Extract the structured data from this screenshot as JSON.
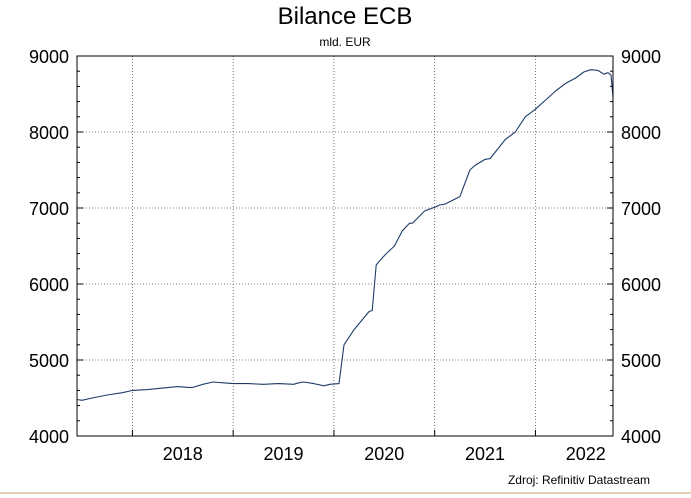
{
  "chart_data": {
    "type": "line",
    "title": "Bilance ECB",
    "subtitle": "mld. EUR",
    "source": "Zdroj: Refinitiv Datastream",
    "ylim": [
      4000,
      9000
    ],
    "y_ticks": [
      4000,
      5000,
      6000,
      7000,
      8000,
      9000
    ],
    "y_tick_labels": [
      "4000",
      "5000",
      "6000",
      "7000",
      "8000",
      "9000"
    ],
    "x_tick_labels": [
      "2018",
      "2019",
      "2020",
      "2021",
      "2022"
    ],
    "xlim": [
      2017.45,
      2022.77
    ],
    "x_year_bounds": [
      2018,
      2019,
      2020,
      2021,
      2022
    ],
    "grid": true,
    "dual_y_axis": true,
    "colors": {
      "line": "#1f3c68",
      "grid": "#555555",
      "footer_rule": "#c8a86a"
    },
    "series": [
      {
        "x": [
          2017.45,
          2017.5,
          2017.6,
          2017.75,
          2017.9,
          2018.0,
          2018.15,
          2018.3,
          2018.45,
          2018.55,
          2018.6,
          2018.7,
          2018.8,
          2018.9,
          2019.0,
          2019.15,
          2019.3,
          2019.45,
          2019.6,
          2019.65,
          2019.7,
          2019.8,
          2019.9,
          2019.96,
          2020.05,
          2020.1,
          2020.2,
          2020.35,
          2020.38,
          2020.42,
          2020.45,
          2020.52,
          2020.6,
          2020.68,
          2020.75,
          2020.78,
          2020.9,
          2021.0,
          2021.05,
          2021.1,
          2021.25,
          2021.35,
          2021.4,
          2021.5,
          2021.55,
          2021.7,
          2021.74,
          2021.8,
          2021.9,
          2022.0,
          2022.1,
          2022.2,
          2022.3,
          2022.4,
          2022.48,
          2022.55,
          2022.62,
          2022.68,
          2022.72,
          2022.75,
          2022.77
        ],
        "values": [
          4480,
          4470,
          4500,
          4540,
          4570,
          4600,
          4610,
          4630,
          4650,
          4640,
          4640,
          4680,
          4710,
          4700,
          4690,
          4690,
          4680,
          4690,
          4680,
          4700,
          4710,
          4690,
          4660,
          4680,
          4690,
          5200,
          5400,
          5640,
          5650,
          6250,
          6300,
          6400,
          6500,
          6700,
          6800,
          6800,
          6960,
          7010,
          7040,
          7050,
          7150,
          7500,
          7560,
          7640,
          7650,
          7900,
          7940,
          8000,
          8200,
          8300,
          8420,
          8540,
          8640,
          8710,
          8790,
          8820,
          8810,
          8760,
          8780,
          8750,
          8460
        ]
      }
    ]
  }
}
